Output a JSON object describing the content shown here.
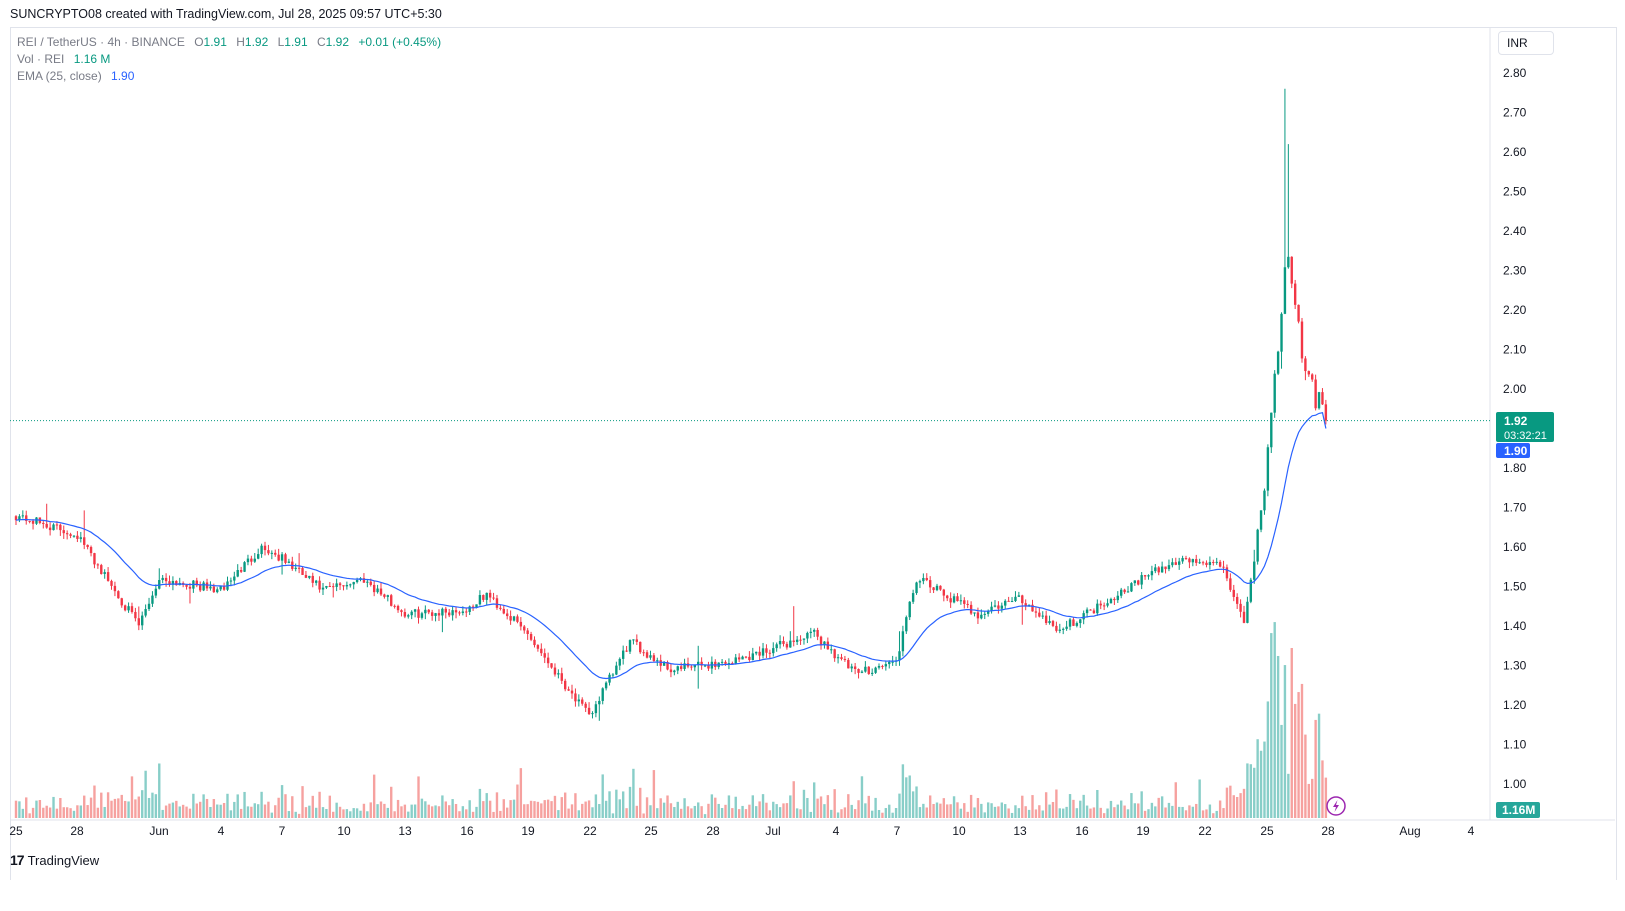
{
  "header": {
    "credit": "SUNCRYPTO08 created with TradingView.com, Jul 28, 2025 09:57 UTC+5:30"
  },
  "legend": {
    "symbol": "REI / TetherUS · 4h · BINANCE",
    "o_label": "O",
    "o_val": "1.91",
    "h_label": "H",
    "h_val": "1.92",
    "l_label": "L",
    "l_val": "1.91",
    "c_label": "C",
    "c_val": "1.92",
    "change": "+0.01 (+0.45%)",
    "vol_label": "Vol · REI",
    "vol_val": "1.16 M",
    "ema_label": "EMA (25, close)",
    "ema_val": "1.90"
  },
  "currency_button": {
    "label": "INR"
  },
  "price_axis": {
    "ticks": [
      "2.80",
      "2.70",
      "2.60",
      "2.50",
      "2.40",
      "2.30",
      "2.20",
      "2.10",
      "2.00",
      "1.90",
      "1.80",
      "1.70",
      "1.60",
      "1.50",
      "1.40",
      "1.30",
      "1.20",
      "1.10",
      "1.00"
    ]
  },
  "time_axis": {
    "ticks": [
      "25",
      "28",
      "Jun",
      "4",
      "7",
      "10",
      "13",
      "16",
      "19",
      "22",
      "25",
      "28",
      "Jul",
      "4",
      "7",
      "10",
      "13",
      "16",
      "19",
      "22",
      "25",
      "28",
      "Aug",
      "4"
    ]
  },
  "badges": {
    "last_price": "1.92",
    "countdown": "03:32:21",
    "ema_price": "1.90",
    "volume": "1.16M"
  },
  "footer": {
    "brand": "TradingView"
  },
  "colors": {
    "up": "#089981",
    "down": "#f23645",
    "ema": "#2962ff",
    "volume_up": "#26a69a",
    "volume_down": "#ef5350"
  },
  "chart_data": {
    "type": "candlestick",
    "symbol": "REI / TetherUS",
    "interval": "4h",
    "exchange": "BINANCE",
    "y_range": [
      0.95,
      2.82
    ],
    "current_price": 1.92,
    "ema_current": 1.9,
    "volume_last": "1.16M",
    "price_path_approx": [
      {
        "date": "May 25",
        "close": 1.68
      },
      {
        "date": "May 28",
        "close": 1.63
      },
      {
        "date": "May 31",
        "close": 1.4
      },
      {
        "date": "Jun 1",
        "close": 1.52
      },
      {
        "date": "Jun 4",
        "close": 1.49
      },
      {
        "date": "Jun 6",
        "close": 1.6
      },
      {
        "date": "Jun 7",
        "close": 1.57
      },
      {
        "date": "Jun 9",
        "close": 1.49
      },
      {
        "date": "Jun 11",
        "close": 1.52
      },
      {
        "date": "Jun 13",
        "close": 1.43
      },
      {
        "date": "Jun 16",
        "close": 1.44
      },
      {
        "date": "Jun 17",
        "close": 1.48
      },
      {
        "date": "Jun 19",
        "close": 1.38
      },
      {
        "date": "Jun 22",
        "close": 1.17
      },
      {
        "date": "Jun 24",
        "close": 1.36
      },
      {
        "date": "Jun 26",
        "close": 1.29
      },
      {
        "date": "Jun 29",
        "close": 1.31
      },
      {
        "date": "Jul 3",
        "close": 1.38
      },
      {
        "date": "Jul 5",
        "close": 1.28
      },
      {
        "date": "Jul 7",
        "close": 1.31
      },
      {
        "date": "Jul 8",
        "close": 1.52
      },
      {
        "date": "Jul 11",
        "close": 1.43
      },
      {
        "date": "Jul 13",
        "close": 1.47
      },
      {
        "date": "Jul 15",
        "close": 1.39
      },
      {
        "date": "Jul 19",
        "close": 1.52
      },
      {
        "date": "Jul 21",
        "close": 1.57
      },
      {
        "date": "Jul 23",
        "close": 1.55
      },
      {
        "date": "Jul 24",
        "close": 1.4
      },
      {
        "date": "Jul 25",
        "close": 1.75
      },
      {
        "date": "Jul 26",
        "close": 2.33
      },
      {
        "date": "Jul 27",
        "close": 2.05
      },
      {
        "date": "Jul 28",
        "close": 1.92
      }
    ],
    "notable_highs": [
      {
        "date": "Jul 26",
        "high": 2.76
      },
      {
        "date": "Jul 26",
        "high": 2.62
      }
    ],
    "notable_lows": [
      {
        "date": "Jun 22",
        "low": 1.16
      }
    ]
  }
}
